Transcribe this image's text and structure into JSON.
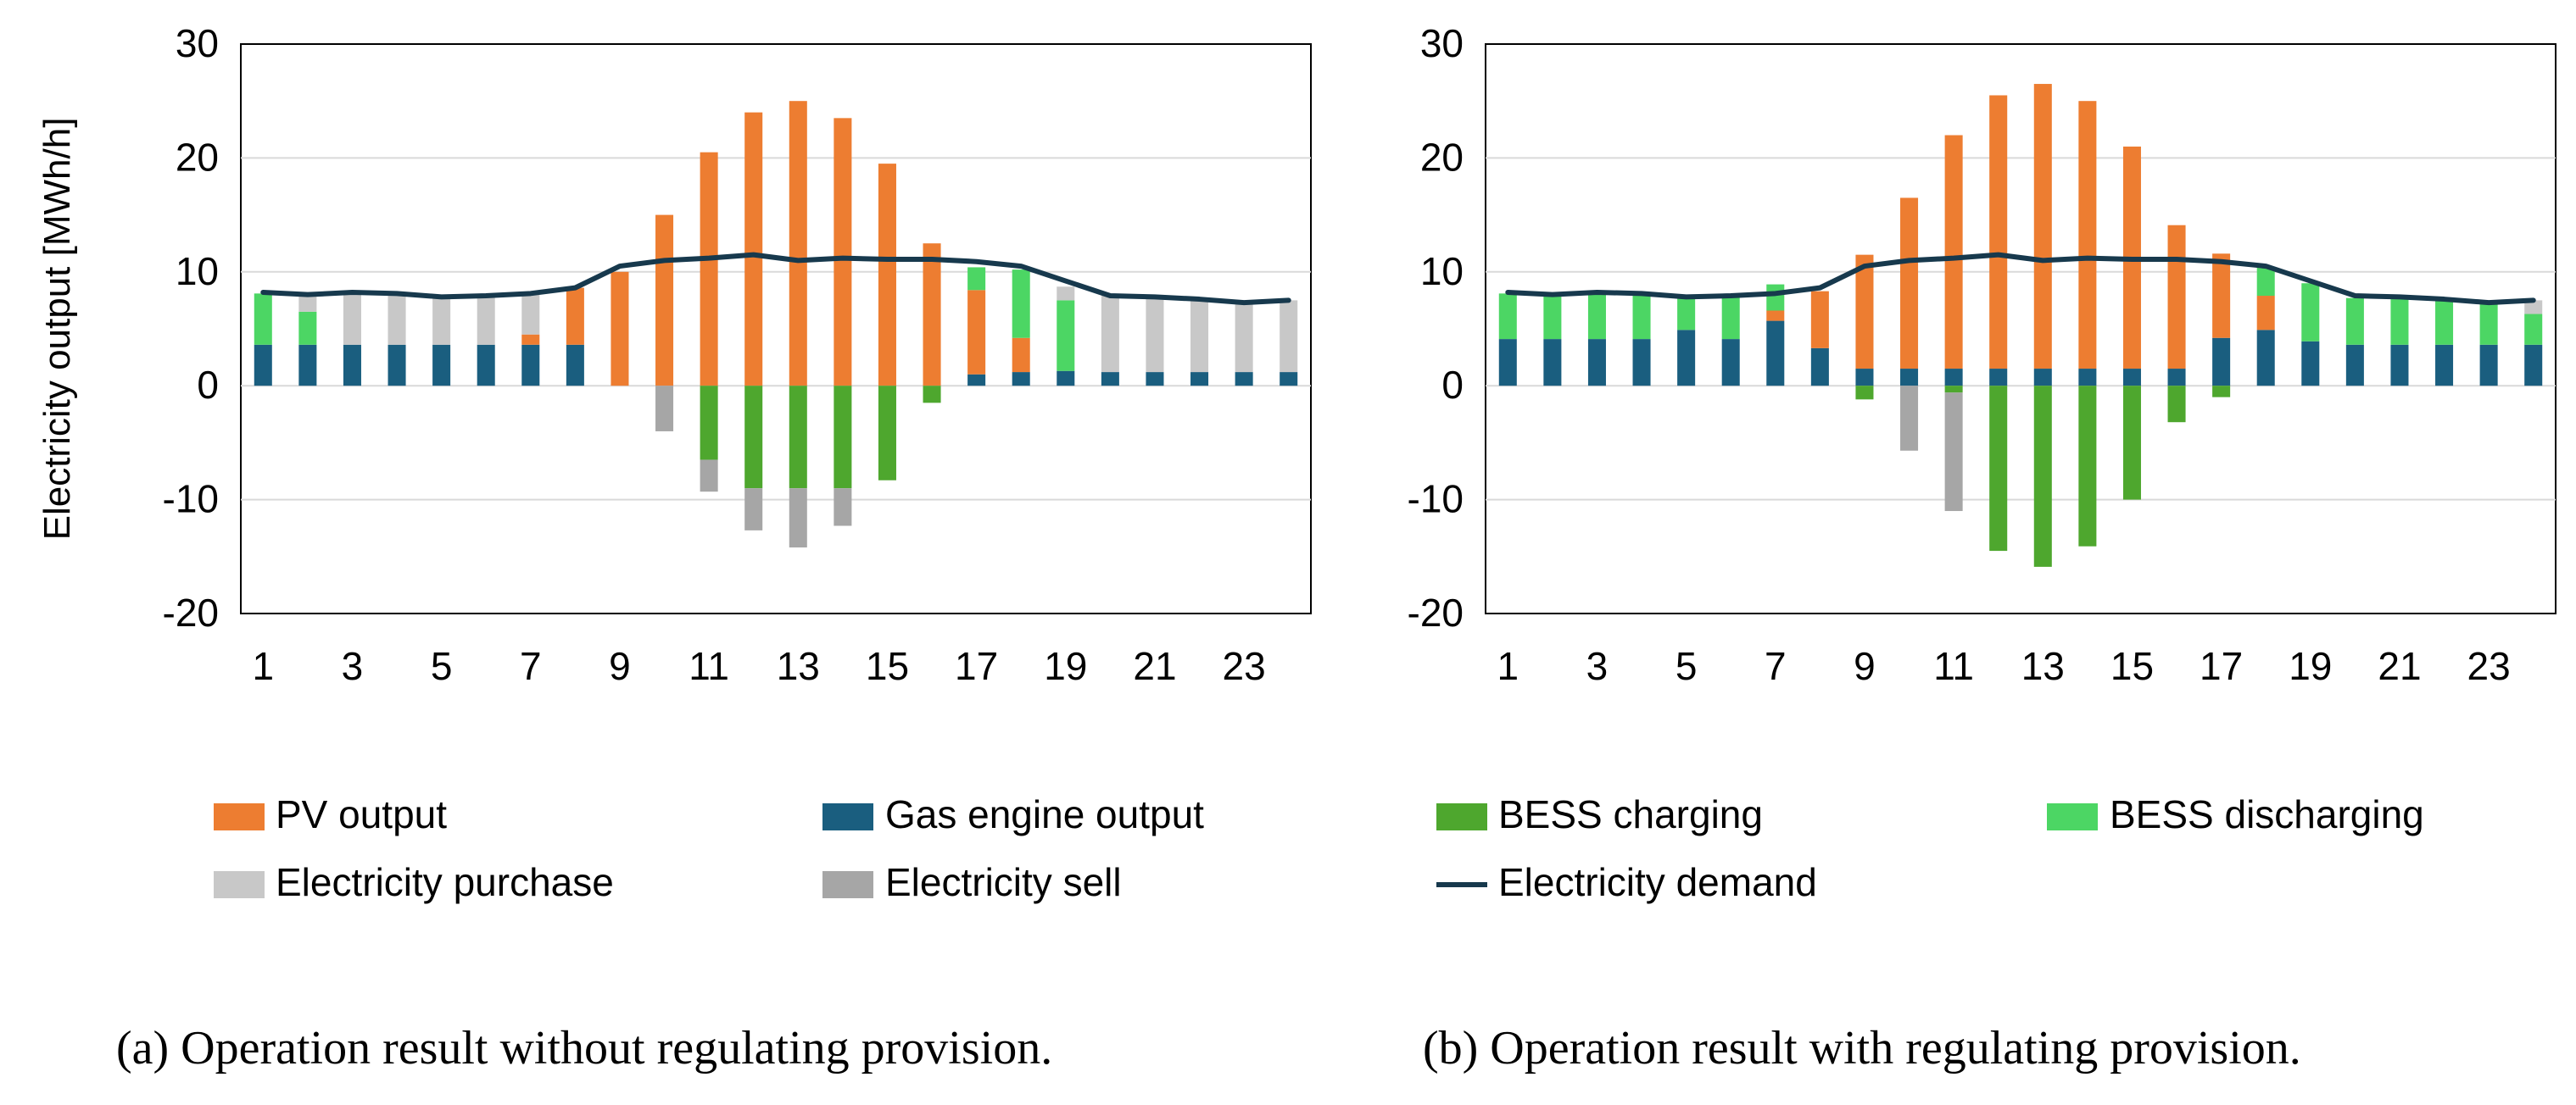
{
  "colors": {
    "pv": "#ED7D31",
    "gas": "#1A5E7F",
    "bess_charge": "#4EA72E",
    "bess_discharge": "#4CD664",
    "purchase": "#C8C8C8",
    "sell": "#A6A6A6",
    "demand": "#17394D",
    "grid": "#D9D9D9",
    "axis": "#000000"
  },
  "legend": {
    "pv": "PV output",
    "gas": "Gas engine output",
    "bess_charge": "BESS charging",
    "bess_discharge": "BESS discharging",
    "purchase": "Electricity purchase",
    "sell": "Electricity sell",
    "demand": "Electricity demand"
  },
  "captions": {
    "a": "(a) Operation result without regulating provision.",
    "b": "(b) Operation result with regulating provision."
  },
  "chart_data": [
    {
      "type": "bar",
      "stacked": true,
      "title": "",
      "ylabel": "Electricity output [MWh/h]",
      "xlabel": "",
      "ylim": [
        -20,
        30
      ],
      "yticks": [
        -20,
        -10,
        0,
        10,
        20,
        30
      ],
      "categories": [
        1,
        2,
        3,
        4,
        5,
        6,
        7,
        8,
        9,
        10,
        11,
        12,
        13,
        14,
        15,
        16,
        17,
        18,
        19,
        20,
        21,
        22,
        23,
        24
      ],
      "xtick_labels": [
        "1",
        "3",
        "5",
        "7",
        "9",
        "11",
        "13",
        "15",
        "17",
        "19",
        "21",
        "23"
      ],
      "grid": true,
      "positive_stack_order": [
        "gas",
        "pv",
        "bess_discharge",
        "purchase"
      ],
      "negative_stack_order": [
        "bess_charge",
        "sell"
      ],
      "series": [
        {
          "key": "gas",
          "name": "Gas engine output",
          "values": [
            3.6,
            3.6,
            3.6,
            3.6,
            3.6,
            3.6,
            3.6,
            3.6,
            0,
            0,
            0,
            0,
            0,
            0,
            0,
            0,
            1.0,
            1.2,
            1.3,
            1.2,
            1.2,
            1.2,
            1.2,
            1.2
          ]
        },
        {
          "key": "pv",
          "name": "PV output",
          "values": [
            0,
            0,
            0,
            0,
            0,
            0,
            0.9,
            5.0,
            10.0,
            15.0,
            20.5,
            24.0,
            25.0,
            23.5,
            19.5,
            12.5,
            7.4,
            3.0,
            0,
            0,
            0,
            0,
            0,
            0
          ]
        },
        {
          "key": "bess_discharge",
          "name": "BESS discharging",
          "values": [
            4.5,
            2.9,
            0,
            0,
            0,
            0,
            0,
            0,
            0,
            0,
            0,
            0,
            0,
            0,
            0,
            0,
            2.0,
            6.0,
            6.2,
            0,
            0,
            0,
            0,
            0
          ]
        },
        {
          "key": "purchase",
          "name": "Electricity purchase",
          "values": [
            0,
            1.4,
            4.6,
            4.5,
            4.3,
            4.3,
            3.5,
            0,
            0,
            0,
            0,
            0,
            0,
            0,
            0,
            0,
            0,
            0,
            1.2,
            6.7,
            6.5,
            6.3,
            6.2,
            6.3
          ]
        },
        {
          "key": "bess_charge",
          "name": "BESS charging",
          "values": [
            0,
            0,
            0,
            0,
            0,
            0,
            0,
            0,
            0,
            0,
            -6.5,
            -9.0,
            -9.0,
            -9.0,
            -8.3,
            -1.5,
            0,
            0,
            0,
            0,
            0,
            0,
            0,
            0
          ]
        },
        {
          "key": "sell",
          "name": "Electricity sell",
          "values": [
            0,
            0,
            0,
            0,
            0,
            0,
            0,
            0,
            0,
            -4.0,
            -2.8,
            -3.7,
            -5.2,
            -3.3,
            0,
            0,
            0,
            0,
            0,
            0,
            0,
            0,
            0,
            0
          ]
        }
      ],
      "demand": {
        "name": "Electricity demand",
        "values": [
          8.2,
          8.0,
          8.2,
          8.1,
          7.8,
          7.9,
          8.1,
          8.6,
          10.5,
          11.0,
          11.2,
          11.5,
          11.0,
          11.2,
          11.1,
          11.1,
          10.9,
          10.5,
          9.2,
          7.9,
          7.8,
          7.6,
          7.3,
          7.5
        ]
      }
    },
    {
      "type": "bar",
      "stacked": true,
      "title": "",
      "ylabel": "",
      "xlabel": "",
      "ylim": [
        -20,
        30
      ],
      "yticks": [
        -20,
        -10,
        0,
        10,
        20,
        30
      ],
      "categories": [
        1,
        2,
        3,
        4,
        5,
        6,
        7,
        8,
        9,
        10,
        11,
        12,
        13,
        14,
        15,
        16,
        17,
        18,
        19,
        20,
        21,
        22,
        23,
        24
      ],
      "xtick_labels": [
        "1",
        "3",
        "5",
        "7",
        "9",
        "11",
        "13",
        "15",
        "17",
        "19",
        "21",
        "23"
      ],
      "grid": true,
      "positive_stack_order": [
        "gas",
        "pv",
        "bess_discharge",
        "purchase"
      ],
      "negative_stack_order": [
        "bess_charge",
        "sell"
      ],
      "series": [
        {
          "key": "gas",
          "name": "Gas engine output",
          "values": [
            4.1,
            4.1,
            4.1,
            4.1,
            4.9,
            4.1,
            5.7,
            3.3,
            1.5,
            1.5,
            1.5,
            1.5,
            1.5,
            1.5,
            1.5,
            1.5,
            4.2,
            4.9,
            3.9,
            3.6,
            3.6,
            3.6,
            3.6,
            3.6
          ]
        },
        {
          "key": "pv",
          "name": "PV output",
          "values": [
            0,
            0,
            0,
            0,
            0,
            0,
            0.9,
            5.0,
            10.0,
            15.0,
            20.5,
            24.0,
            25.0,
            23.5,
            19.5,
            12.6,
            7.4,
            3.0,
            0,
            0,
            0,
            0,
            0,
            0
          ]
        },
        {
          "key": "bess_discharge",
          "name": "BESS discharging",
          "values": [
            4.0,
            3.9,
            4.0,
            3.9,
            2.9,
            3.7,
            2.3,
            0,
            0,
            0,
            0,
            0,
            0,
            0,
            0,
            0,
            0,
            2.5,
            5.1,
            4.1,
            4.0,
            3.9,
            3.6,
            2.7
          ]
        },
        {
          "key": "purchase",
          "name": "Electricity purchase",
          "values": [
            0,
            0,
            0,
            0,
            0,
            0,
            0,
            0,
            0,
            0,
            0,
            0,
            0,
            0,
            0,
            0,
            0,
            0,
            0,
            0,
            0,
            0,
            0,
            1.2
          ]
        },
        {
          "key": "bess_charge",
          "name": "BESS charging",
          "values": [
            0,
            0,
            0,
            0,
            0,
            0,
            0,
            0,
            -1.2,
            0,
            -0.6,
            -14.5,
            -15.9,
            -14.1,
            -10.0,
            -3.2,
            -1.0,
            0,
            0,
            0,
            0,
            0,
            0,
            0
          ]
        },
        {
          "key": "sell",
          "name": "Electricity sell",
          "values": [
            0,
            0,
            0,
            0,
            0,
            0,
            0,
            0,
            0,
            -5.7,
            -10.4,
            0,
            0,
            0,
            0,
            0,
            0,
            0,
            0,
            0,
            0,
            0,
            0,
            0
          ]
        }
      ],
      "demand": {
        "name": "Electricity demand",
        "values": [
          8.2,
          8.0,
          8.2,
          8.1,
          7.8,
          7.9,
          8.1,
          8.6,
          10.5,
          11.0,
          11.2,
          11.5,
          11.0,
          11.2,
          11.1,
          11.1,
          10.9,
          10.5,
          9.2,
          7.9,
          7.8,
          7.6,
          7.3,
          7.5
        ]
      }
    }
  ]
}
